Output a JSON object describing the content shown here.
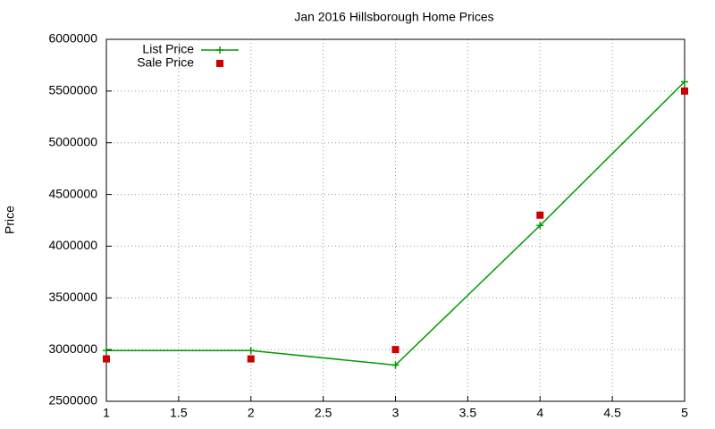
{
  "chart_data": {
    "type": "line",
    "title": "Jan 2016 Hillsborough Home Prices",
    "y_label": "Price",
    "x": [
      1,
      2,
      3,
      4,
      5
    ],
    "series": [
      {
        "name": "List Price",
        "color": "#009900",
        "mode": "linespoints",
        "values": [
          2990000,
          2990000,
          2850000,
          4200000,
          5590000
        ]
      },
      {
        "name": "Sale Price",
        "color": "#cc0000",
        "mode": "points",
        "values": [
          2910000,
          2910000,
          3000000,
          4300000,
          5500000
        ]
      }
    ],
    "xlim": [
      1,
      5
    ],
    "xticks": [
      1,
      1.5,
      2,
      2.5,
      3,
      3.5,
      4,
      4.5,
      5
    ],
    "ylim": [
      2500000,
      6000000
    ],
    "yticks": [
      2500000,
      3000000,
      3500000,
      4000000,
      4500000,
      5000000,
      5500000,
      6000000
    ],
    "grid": true,
    "legend": "top-left"
  }
}
